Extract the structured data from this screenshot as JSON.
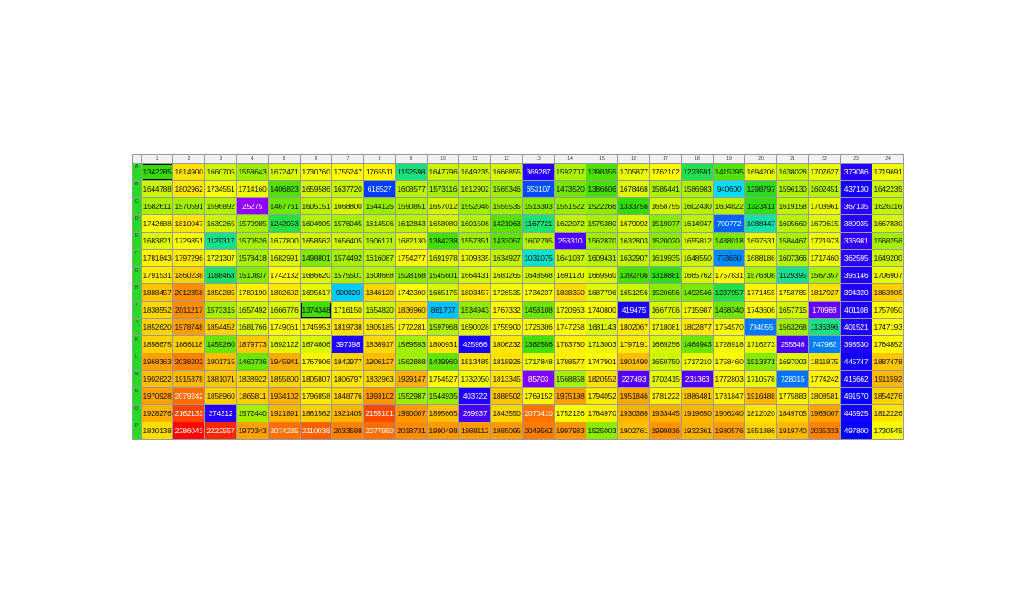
{
  "columns": [
    "1",
    "2",
    "3",
    "4",
    "5",
    "6",
    "7",
    "8",
    "9",
    "10",
    "11",
    "12",
    "13",
    "14",
    "15",
    "16",
    "17",
    "18",
    "19",
    "20",
    "21",
    "22",
    "23",
    "24"
  ],
  "rows": [
    {
      "label": "A",
      "values": [
        "1342285",
        "1814900",
        "1660705",
        "1558643",
        "1672471",
        "1730760",
        "1755247",
        "1765511",
        "1152598",
        "1647796",
        "1649235",
        "1666855",
        "369287",
        "1592707",
        "1398355",
        "1705877",
        "1762102",
        "1223591",
        "1415395",
        "1694206",
        "1638028",
        "1707627",
        "379086",
        "1719691"
      ]
    },
    {
      "label": "B",
      "values": [
        "1644788",
        "1802962",
        "1734551",
        "1714160",
        "1406823",
        "1659586",
        "1637720",
        "618527",
        "1608577",
        "1573116",
        "1612902",
        "1565346",
        "653107",
        "1473520",
        "1386606",
        "1678468",
        "1585441",
        "1586983",
        "940600",
        "1298797",
        "1596130",
        "1602451",
        "437130",
        "1642235"
      ]
    },
    {
      "label": "C",
      "values": [
        "1582611",
        "1570591",
        "1596892",
        "25275",
        "1467761",
        "1605151",
        "1668800",
        "1544125",
        "1590851",
        "1657012",
        "1552046",
        "1559535",
        "1516303",
        "1551522",
        "1522266",
        "1333756",
        "1658755",
        "1602430",
        "1604822",
        "1323411",
        "1619158",
        "1703961",
        "367135",
        "1626116"
      ]
    },
    {
      "label": "D",
      "values": [
        "1742688",
        "1810047",
        "1639265",
        "1570985",
        "1242053",
        "1604905",
        "1576045",
        "1614506",
        "1612843",
        "1658080",
        "1601506",
        "1421063",
        "1167721",
        "1622072",
        "1575380",
        "1679092",
        "1519077",
        "1614947",
        "700772",
        "1088447",
        "1605660",
        "1679615",
        "380935",
        "1667830"
      ]
    },
    {
      "label": "E",
      "values": [
        "1683821",
        "1729851",
        "1129317",
        "1570526",
        "1677800",
        "1658562",
        "1656405",
        "1606171",
        "1682130",
        "1384238",
        "1557351",
        "1433057",
        "1602795",
        "253310",
        "1562870",
        "1632803",
        "1520020",
        "1655812",
        "1488018",
        "1697631",
        "1584467",
        "1721973",
        "336981",
        "1568256"
      ]
    },
    {
      "label": "F",
      "values": [
        "1781843",
        "1797296",
        "1721307",
        "1578418",
        "1682991",
        "1498801",
        "1574492",
        "1616087",
        "1754277",
        "1691978",
        "1709335",
        "1634927",
        "1031075",
        "1641037",
        "1609431",
        "1632907",
        "1619935",
        "1648550",
        "773660",
        "1688186",
        "1607366",
        "1717460",
        "362595",
        "1649200"
      ]
    },
    {
      "label": "G",
      "values": [
        "1791531",
        "1860238",
        "1188463",
        "1510837",
        "1742132",
        "1686620",
        "1575501",
        "1608668",
        "1528168",
        "1545601",
        "1664431",
        "1681265",
        "1648568",
        "1691120",
        "1669560",
        "1392706",
        "1318881",
        "1665762",
        "1757831",
        "1576308",
        "1129395",
        "1567357",
        "396146",
        "1706907"
      ]
    },
    {
      "label": "H",
      "values": [
        "1888457",
        "2012358",
        "1850285",
        "1780190",
        "1802602",
        "1695617",
        "900020",
        "1846120",
        "1742300",
        "1665175",
        "1803457",
        "1726535",
        "1734237",
        "1838350",
        "1687796",
        "1651256",
        "1520656",
        "1492546",
        "1237957",
        "1771455",
        "1758785",
        "1817927",
        "394320",
        "1863905"
      ]
    },
    {
      "label": "I",
      "values": [
        "1838552",
        "2011217",
        "1573315",
        "1657492",
        "1666776",
        "1374348",
        "1716150",
        "1654820",
        "1836960",
        "881707",
        "1534943",
        "1767332",
        "1458108",
        "1720963",
        "1740800",
        "419475",
        "1667706",
        "1715987",
        "1468340",
        "1743606",
        "1657715",
        "170988",
        "401108",
        "1757050"
      ]
    },
    {
      "label": "J",
      "values": [
        "1852620",
        "1978748",
        "1854452",
        "1681766",
        "1749061",
        "1745953",
        "1819738",
        "1805185",
        "1772281",
        "1597968",
        "1690028",
        "1755900",
        "1726306",
        "1747258",
        "1681143",
        "1802067",
        "1718081",
        "1802877",
        "1754570",
        "734055",
        "1563268",
        "1136396",
        "401521",
        "1747193"
      ]
    },
    {
      "label": "K",
      "values": [
        "1856675",
        "1866118",
        "1459260",
        "1879773",
        "1692122",
        "1674606",
        "397398",
        "1838917",
        "1569593",
        "1800931",
        "425966",
        "1806232",
        "1382556",
        "1783780",
        "1713003",
        "1797191",
        "1669256",
        "1464943",
        "1728918",
        "1716273",
        "255646",
        "747982",
        "398530",
        "1764852"
      ]
    },
    {
      "label": "L",
      "values": [
        "1968363",
        "2038202",
        "1901715",
        "1460736",
        "1945941",
        "1767906",
        "1842977",
        "1906127",
        "1562888",
        "1439960",
        "1813485",
        "1818926",
        "1717848",
        "1788577",
        "1747901",
        "1901490",
        "1650750",
        "1717210",
        "1758460",
        "1513371",
        "1697003",
        "1811875",
        "445747",
        "1887478"
      ]
    },
    {
      "label": "M",
      "values": [
        "1902622",
        "1915378",
        "1881071",
        "1838922",
        "1855800",
        "1805807",
        "1806797",
        "1832963",
        "1929147",
        "1754527",
        "1732050",
        "1813345",
        "85703",
        "1568858",
        "1820552",
        "227493",
        "1702415",
        "231363",
        "1772803",
        "1710578",
        "728015",
        "1774242",
        "416662",
        "1911592"
      ]
    },
    {
      "label": "N",
      "values": [
        "1970928",
        "2079242",
        "1858960",
        "1865811",
        "1934102",
        "1796858",
        "1848776",
        "1993102",
        "1552987",
        "1544935",
        "403722",
        "1888502",
        "1769152",
        "1975198",
        "1794052",
        "1951846",
        "1781222",
        "1886481",
        "1781847",
        "1916488",
        "1775883",
        "1808581",
        "491570",
        "1854276"
      ]
    },
    {
      "label": "O",
      "values": [
        "1928276",
        "2162133",
        "374212",
        "1572440",
        "1921891",
        "1861562",
        "1921405",
        "2155101",
        "1990007",
        "1895665",
        "269937",
        "1843550",
        "2070410",
        "1752126",
        "1784970",
        "1930386",
        "1933445",
        "1919650",
        "1906240",
        "1812020",
        "1849705",
        "1963007",
        "445925",
        "1812226"
      ]
    },
    {
      "label": "P",
      "values": [
        "1830138",
        "2286043",
        "2222557",
        "1970343",
        "2074235",
        "2110036",
        "2033588",
        "2077950",
        "2018731",
        "1990498",
        "1988112",
        "1985095",
        "2049562",
        "1997933",
        "1525003",
        "1902761",
        "1999816",
        "1932361",
        "1980576",
        "1851886",
        "1919740",
        "2035333",
        "497800",
        "1730545"
      ]
    }
  ],
  "selected_cells": [
    "A1",
    "I6"
  ],
  "colors": {
    "min_violet": "#9900ff",
    "blue": "#0000ff",
    "cyan": "#00e5ff",
    "green": "#33dd00",
    "yellow": "#ffff00",
    "orange": "#ff9900",
    "max_red": "#ff0000",
    "row_header": "#22dd22"
  }
}
